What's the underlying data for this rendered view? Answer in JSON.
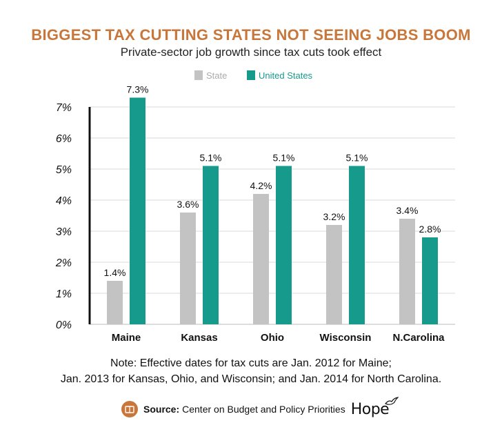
{
  "chart_data": {
    "type": "bar",
    "title": "BIGGEST TAX CUTTING STATES NOT SEEING JOBS BOOM",
    "subtitle": "Private-sector job growth since tax cuts took effect",
    "categories": [
      "Maine",
      "Kansas",
      "Ohio",
      "Wisconsin",
      "N.Carolina"
    ],
    "series": [
      {
        "name": "State",
        "color": "#c3c3c3",
        "values": [
          1.4,
          3.6,
          4.2,
          3.2,
          3.4
        ],
        "labels": [
          "1.4%",
          "3.6%",
          "4.2%",
          "3.2%",
          "3.4%"
        ]
      },
      {
        "name": "United States",
        "color": "#169a8c",
        "values": [
          7.3,
          5.1,
          5.1,
          5.1,
          2.8
        ],
        "labels": [
          "7.3%",
          "5.1%",
          "5.1%",
          "5.1%",
          "2.8%"
        ]
      }
    ],
    "yticks": [
      0,
      1,
      2,
      3,
      4,
      5,
      6,
      7
    ],
    "ytick_labels": [
      "0%",
      "1%",
      "2%",
      "3%",
      "4%",
      "5%",
      "6%",
      "7%"
    ],
    "ylim": [
      0,
      7
    ],
    "grid": true,
    "legend": "top-center"
  },
  "note": {
    "line1": "Note: Effective dates for tax cuts are Jan. 2012 for Maine;",
    "line2": "Jan. 2013 for Kansas, Ohio, and Wisconsin; and Jan. 2014 for North Carolina."
  },
  "source": {
    "label": "Source:",
    "text": "Center on Budget and Policy Priorities",
    "brand": "Hope",
    "icon": "book-icon"
  },
  "colors": {
    "accent": "#c8763a",
    "state": "#c3c3c3",
    "us": "#169a8c"
  }
}
